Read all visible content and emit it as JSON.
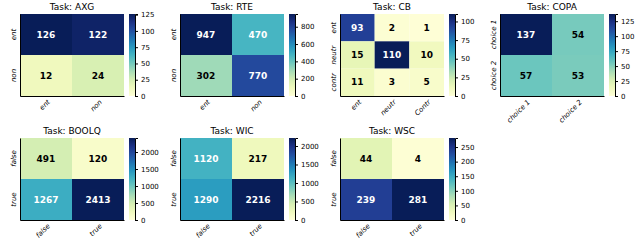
{
  "chart_data": [
    {
      "type": "heatmap",
      "title": "Task: AXG",
      "categories": [
        "ent",
        "non"
      ],
      "y_categories": [
        "ent",
        "non"
      ],
      "values": [
        [
          126,
          122
        ],
        [
          12,
          24
        ]
      ],
      "color": "YlGnBu",
      "data_labels": true,
      "colorbar_lim": [
        0,
        126
      ],
      "colorbar_ticks": [
        0,
        25,
        50,
        75,
        100,
        125
      ]
    },
    {
      "type": "heatmap",
      "title": "Task: RTE",
      "categories": [
        "ent",
        "non"
      ],
      "y_categories": [
        "ent",
        "non"
      ],
      "values": [
        [
          947,
          470
        ],
        [
          302,
          770
        ]
      ],
      "color": "YlGnBu",
      "data_labels": true,
      "colorbar_lim": [
        0,
        947
      ],
      "colorbar_ticks": [
        0,
        200,
        400,
        600,
        800
      ]
    },
    {
      "type": "heatmap",
      "title": "Task: CB",
      "categories": [
        "ent",
        "neutr",
        "Contr"
      ],
      "y_categories": [
        "ent",
        "neutr",
        "contr"
      ],
      "values": [
        [
          93,
          2,
          1
        ],
        [
          15,
          110,
          10
        ],
        [
          11,
          3,
          5
        ]
      ],
      "color": "YlGnBu",
      "data_labels": true,
      "colorbar_lim": [
        0,
        110
      ],
      "colorbar_ticks": [
        0,
        25,
        50,
        75,
        100
      ]
    },
    {
      "type": "heatmap",
      "title": "Task: COPA",
      "categories": [
        "choice 1",
        "choice 2"
      ],
      "y_categories": [
        "choice 1",
        "choice 2"
      ],
      "values": [
        [
          137,
          54
        ],
        [
          57,
          53
        ]
      ],
      "color": "YlGnBu",
      "data_labels": true,
      "colorbar_lim": [
        0,
        137
      ],
      "colorbar_ticks": [
        0,
        25,
        50,
        75,
        100,
        125
      ]
    },
    {
      "type": "heatmap",
      "title": "Task: BOOLQ",
      "categories": [
        "false",
        "true"
      ],
      "y_categories": [
        "false",
        "true"
      ],
      "values": [
        [
          491,
          120
        ],
        [
          1267,
          2413
        ]
      ],
      "color": "YlGnBu",
      "data_labels": true,
      "colorbar_lim": [
        0,
        2413
      ],
      "colorbar_ticks": [
        0,
        500,
        1000,
        1500,
        2000
      ]
    },
    {
      "type": "heatmap",
      "title": "Task: WIC",
      "categories": [
        "false",
        "true"
      ],
      "y_categories": [
        "false",
        "true"
      ],
      "values": [
        [
          1120,
          217
        ],
        [
          1290,
          2216
        ]
      ],
      "color": "YlGnBu",
      "data_labels": true,
      "colorbar_lim": [
        0,
        2216
      ],
      "colorbar_ticks": [
        0,
        500,
        1000,
        1500,
        2000
      ]
    },
    {
      "type": "heatmap",
      "title": "Task: WSC",
      "categories": [
        "false",
        "true"
      ],
      "y_categories": [
        "false",
        "true"
      ],
      "values": [
        [
          44,
          4
        ],
        [
          239,
          281
        ]
      ],
      "color": "YlGnBu",
      "data_labels": true,
      "colorbar_lim": [
        0,
        281
      ],
      "colorbar_ticks": [
        0,
        50,
        100,
        150,
        200,
        250
      ]
    }
  ]
}
